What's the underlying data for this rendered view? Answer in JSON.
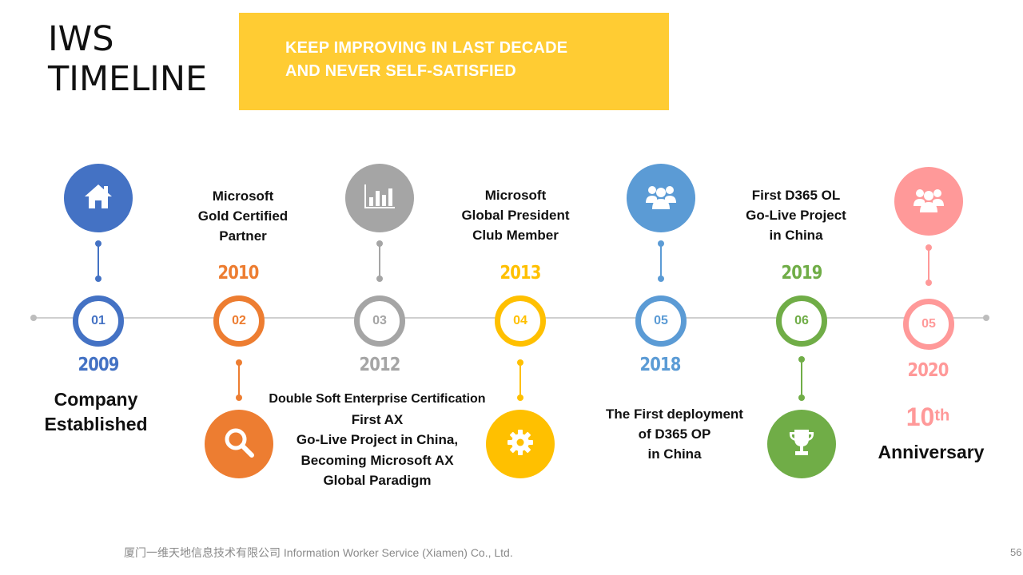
{
  "title": {
    "line1": "IWS",
    "line2": "TIMELINE"
  },
  "banner": {
    "line1": "KEEP IMPROVING IN LAST DECADE",
    "line2": "AND NEVER SELF-SATISFIED",
    "color": "#FFCC33"
  },
  "milestones": [
    {
      "number": "01",
      "year": "2009",
      "color": "#4472C4",
      "icon": "home-icon",
      "label_lines": [
        "Company",
        "Established"
      ]
    },
    {
      "number": "02",
      "year": "2010",
      "color": "#ED7D31",
      "icon": "search-icon",
      "label_lines": [
        "Microsoft",
        "Gold Certified",
        "Partner"
      ]
    },
    {
      "number": "03",
      "year": "2012",
      "color": "#A5A5A5",
      "icon": "bar-chart-icon",
      "label_lines": [
        "Double Soft Enterprise Certification",
        "First AX",
        "Go-Live Project in China,",
        "Becoming Microsoft AX",
        "Global Paradigm"
      ]
    },
    {
      "number": "04",
      "year": "2013",
      "color": "#FFC000",
      "icon": "gear-icon",
      "label_lines": [
        "Microsoft",
        "Global President",
        "Club Member"
      ]
    },
    {
      "number": "05",
      "year": "2018",
      "color": "#5B9BD5",
      "icon": "people-icon",
      "label_lines": [
        "The First deployment",
        "of D365 OP",
        "in China"
      ]
    },
    {
      "number": "06",
      "year": "2019",
      "color": "#70AD47",
      "icon": "trophy-icon",
      "label_lines": [
        "First D365 OL",
        "Go-Live Project",
        "in China"
      ]
    },
    {
      "number": "05",
      "year": "2020",
      "color": "#FF9999",
      "icon": "people-icon",
      "anniversary_number": "10",
      "anniversary_suffix": "th",
      "label_lines": [
        "Anniversary"
      ]
    }
  ],
  "footer": {
    "company": "厦门一维天地信息技术有限公司 Information Worker Service (Xiamen) Co., Ltd.",
    "page_number": "56"
  }
}
